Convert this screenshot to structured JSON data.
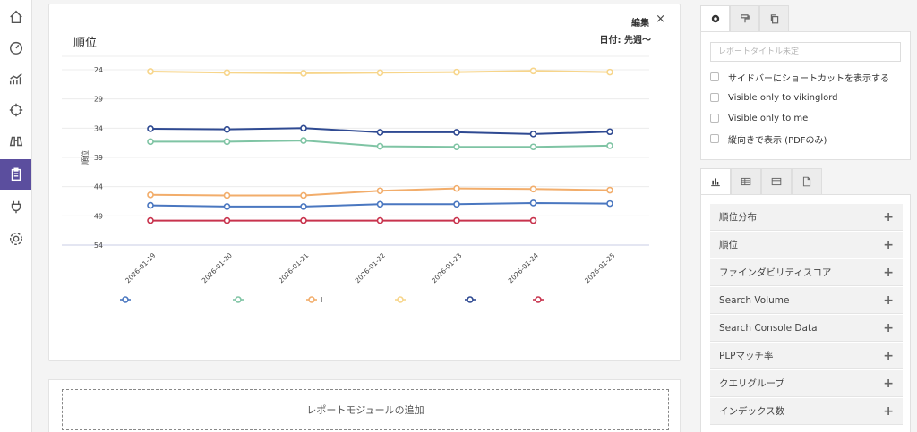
{
  "nav": {
    "items": [
      {
        "name": "home",
        "icon": "home-icon"
      },
      {
        "name": "dashboard",
        "icon": "gauge-icon"
      },
      {
        "name": "analytics",
        "icon": "trend-chart-icon"
      },
      {
        "name": "target",
        "icon": "crosshair-icon"
      },
      {
        "name": "research",
        "icon": "binoculars-icon"
      },
      {
        "name": "reports",
        "icon": "clipboard-icon",
        "active": true
      },
      {
        "name": "integrations",
        "icon": "plug-icon"
      },
      {
        "name": "settings",
        "icon": "gear-icon"
      }
    ],
    "active_color": "#5b4e9e"
  },
  "chart_card": {
    "title": "順位",
    "edit_label": "編集",
    "close_label": "×",
    "date_label": "日付: 先週〜"
  },
  "chart_data": {
    "type": "line",
    "title": "順位",
    "ylabel": "順位",
    "xlabel": "",
    "y_reversed": true,
    "ylim": [
      24,
      54
    ],
    "yticks": [
      24,
      29,
      34,
      39,
      44,
      49,
      54
    ],
    "x": [
      "2026-01-19",
      "2026-01-20",
      "2026-01-21",
      "2026-01-22",
      "2026-01-23",
      "2026-01-24",
      "2026-01-25"
    ],
    "grid": true,
    "legend_position": "bottom",
    "series": [
      {
        "color": "#f7d58a",
        "values": [
          24.3,
          24.5,
          24.6,
          24.5,
          24.4,
          24.2,
          24.4
        ]
      },
      {
        "color": "#2f4a92",
        "values": [
          34.1,
          34.2,
          34.0,
          34.7,
          34.7,
          35.0,
          34.6
        ]
      },
      {
        "color": "#7fc4a4",
        "values": [
          36.3,
          36.3,
          36.1,
          37.1,
          37.2,
          37.2,
          37.0
        ]
      },
      {
        "color": "#f2ad6b",
        "values": [
          45.4,
          45.5,
          45.5,
          44.7,
          44.3,
          44.4,
          44.6
        ]
      },
      {
        "color": "#4a77c0",
        "values": [
          47.2,
          47.4,
          47.4,
          47.0,
          47.0,
          46.8,
          46.9
        ]
      },
      {
        "color": "#c8334d",
        "values": [
          49.8,
          49.8,
          49.8,
          49.8,
          49.8,
          49.8,
          null
        ]
      }
    ],
    "legend": [
      {
        "color": "#4a77c0",
        "label": ""
      },
      {
        "color": "#7fc4a4",
        "label": ""
      },
      {
        "color": "#f2ad6b",
        "label": "I"
      },
      {
        "color": "#f7d58a",
        "label": ""
      },
      {
        "color": "#2f4a92",
        "label": ""
      },
      {
        "color": "#c8334d",
        "label": ""
      }
    ]
  },
  "add_module": {
    "label": "レポートモジュールの追加"
  },
  "settings": {
    "tabs": [
      {
        "icon": "gear-icon",
        "active": true
      },
      {
        "icon": "paint-roller-icon",
        "active": false
      },
      {
        "icon": "copy-icon",
        "active": false
      }
    ],
    "title_placeholder": "レポートタイトル未定",
    "checkboxes": [
      {
        "label": "サイドバーにショートカットを表示する",
        "checked": false
      },
      {
        "label": "Visible only to vikinglord",
        "checked": false
      },
      {
        "label": "Visible only to me",
        "checked": false
      },
      {
        "label": "縦向きで表示 (PDFのみ)",
        "checked": false
      }
    ]
  },
  "modules": {
    "tabs": [
      {
        "icon": "bar-chart-icon",
        "active": true
      },
      {
        "icon": "table-icon",
        "active": false
      },
      {
        "icon": "card-icon",
        "active": false
      },
      {
        "icon": "document-icon",
        "active": false
      }
    ],
    "items": [
      {
        "label": "順位分布"
      },
      {
        "label": "順位"
      },
      {
        "label": "ファインダビリティスコア"
      },
      {
        "label": "Search Volume"
      },
      {
        "label": "Search Console Data"
      },
      {
        "label": "PLPマッチ率"
      },
      {
        "label": "クエリグループ"
      },
      {
        "label": "インデックス数"
      }
    ],
    "plus_label": "+"
  }
}
